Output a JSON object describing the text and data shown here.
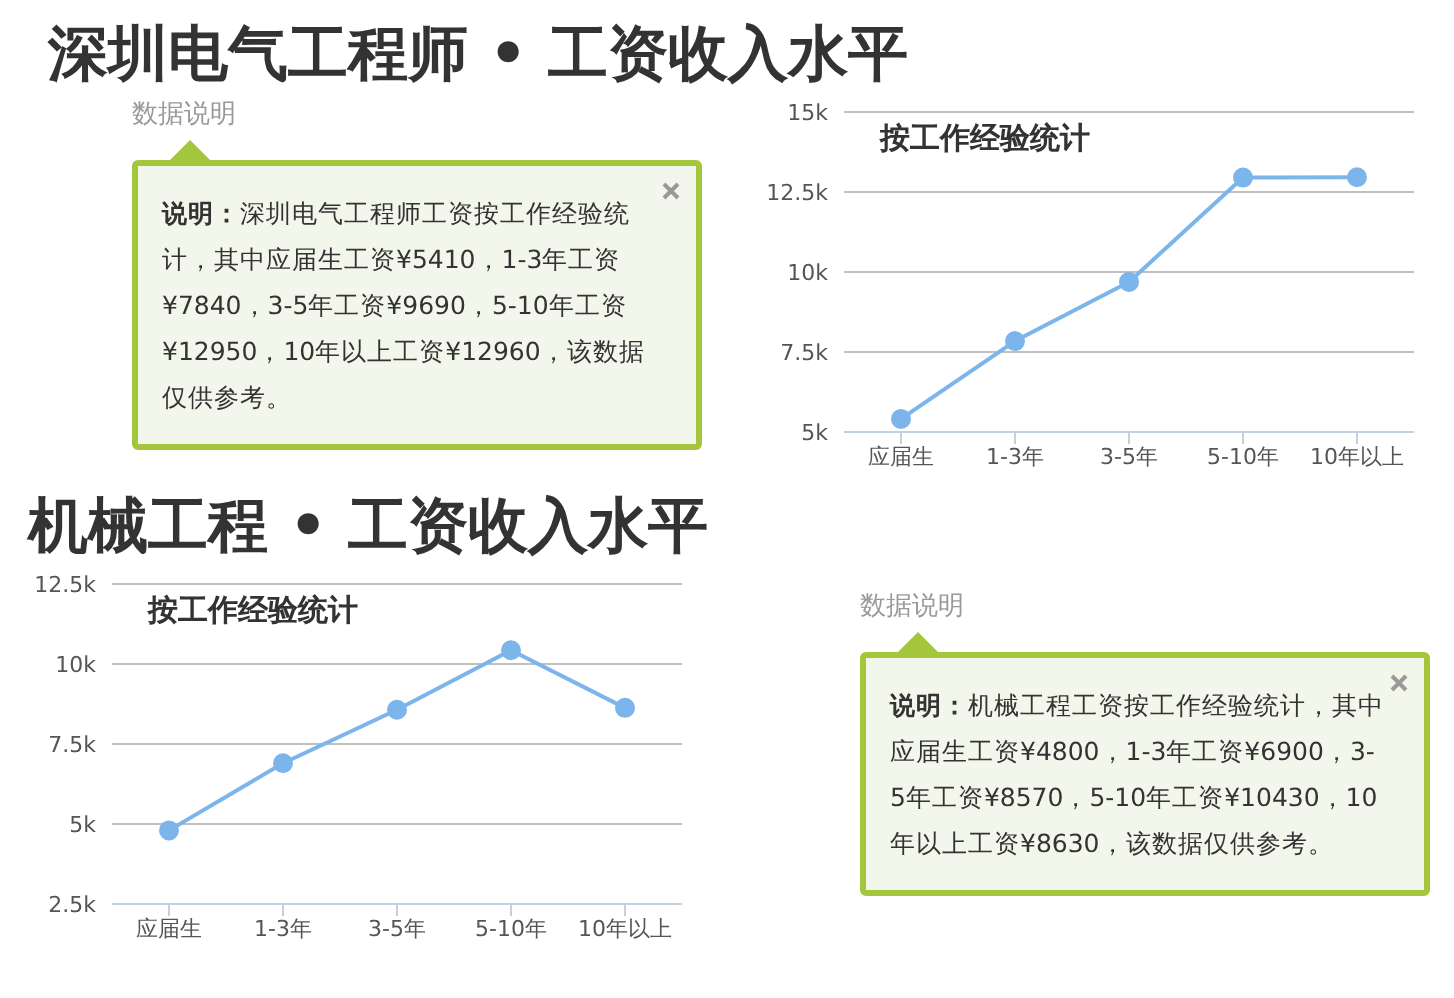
{
  "chart_data": [
    {
      "type": "line",
      "title": "深圳电气工程师 • 工资收入水平",
      "subtitle": "按工作经验统计",
      "categories": [
        "应届生",
        "1-3年",
        "3-5年",
        "5-10年",
        "10年以上"
      ],
      "series": [
        {
          "color": "#7cb5ec",
          "values": [
            5410,
            7840,
            9690,
            12950,
            12960
          ]
        }
      ],
      "ylim": [
        5000,
        15000
      ],
      "yticks": [
        {
          "value": 5000,
          "label": "5k"
        },
        {
          "value": 7500,
          "label": "7.5k"
        },
        {
          "value": 10000,
          "label": "10k"
        },
        {
          "value": 12500,
          "label": "12.5k"
        },
        {
          "value": 15000,
          "label": "15k"
        }
      ],
      "grid": "y",
      "marker": "circle",
      "line_style": "solid",
      "legend": false,
      "annotations": [
        "数据说明",
        "说明：深圳电气工程师工资按工作经验统计，其中应届生工资¥5410，1-3年工资¥7840，3-5年工资¥9690，5-10年工资¥12950，10年以上工资¥12960，该数据仅供参考。"
      ]
    },
    {
      "type": "line",
      "title": "机械工程 • 工资收入水平",
      "subtitle": "按工作经验统计",
      "categories": [
        "应届生",
        "1-3年",
        "3-5年",
        "5-10年",
        "10年以上"
      ],
      "series": [
        {
          "color": "#7cb5ec",
          "values": [
            4800,
            6900,
            8570,
            10430,
            8630
          ]
        }
      ],
      "ylim": [
        2500,
        12500
      ],
      "yticks": [
        {
          "value": 2500,
          "label": "2.5k"
        },
        {
          "value": 5000,
          "label": "5k"
        },
        {
          "value": 7500,
          "label": "7.5k"
        },
        {
          "value": 10000,
          "label": "10k"
        },
        {
          "value": 12500,
          "label": "12.5k"
        }
      ],
      "grid": "y",
      "marker": "circle",
      "line_style": "solid",
      "legend": false,
      "annotations": [
        "数据说明",
        "说明：机械工程工资按工作经验统计，其中应届生工资¥4800，1-3年工资¥6900，3-5年工资¥8570，5-10年工资¥10430，10年以上工资¥8630，该数据仅供参考。"
      ]
    }
  ]
}
